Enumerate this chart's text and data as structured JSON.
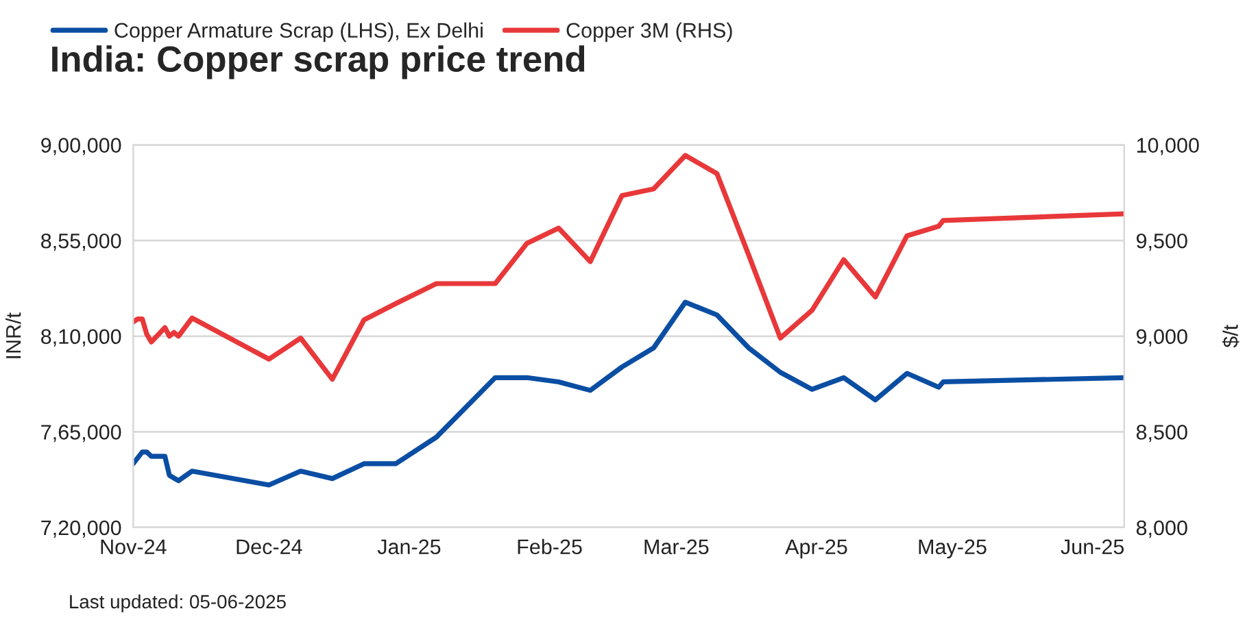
{
  "chart_data": {
    "type": "line",
    "title": "India: Copper scrap price trend",
    "ylabel": "INR/t",
    "y2label": "$/t",
    "annotations": [
      "Last updated: 05-06-2025"
    ],
    "xlim": [
      "2024-11-01",
      "2025-06-08"
    ],
    "xticks": [
      {
        "value": "2024-11-01",
        "label": "Nov-24"
      },
      {
        "value": "2024-12-01",
        "label": "Dec-24"
      },
      {
        "value": "2025-01-01",
        "label": "Jan-25"
      },
      {
        "value": "2025-02-01",
        "label": "Feb-25"
      },
      {
        "value": "2025-03-01",
        "label": "Mar-25"
      },
      {
        "value": "2025-04-01",
        "label": "Apr-25"
      },
      {
        "value": "2025-05-01",
        "label": "May-25"
      },
      {
        "value": "2025-06-01",
        "label": "Jun-25"
      }
    ],
    "ylim": [
      720000,
      900000
    ],
    "yticks": [
      {
        "value": 720000,
        "label": "7,20,000"
      },
      {
        "value": 765000,
        "label": "7,65,000"
      },
      {
        "value": 810000,
        "label": "8,10,000"
      },
      {
        "value": 855000,
        "label": "8,55,000"
      },
      {
        "value": 900000,
        "label": "9,00,000"
      }
    ],
    "y2lim": [
      8000,
      10000
    ],
    "y2ticks": [
      {
        "value": 8000,
        "label": "8,000"
      },
      {
        "value": 8500,
        "label": "8,500"
      },
      {
        "value": 9000,
        "label": "9,000"
      },
      {
        "value": 9500,
        "label": "9,500"
      },
      {
        "value": 10000,
        "label": "10,000"
      }
    ],
    "grid": "y",
    "legend": "top left",
    "marker": "none",
    "line_style": "solid",
    "series": [
      {
        "name": "Copper Armature Scrap (LHS), Ex Delhi",
        "color": "#0a4ea3",
        "x": [
          "2024-11-01",
          "2024-11-03",
          "2024-11-04",
          "2024-11-05",
          "2024-11-08",
          "2024-11-09",
          "2024-11-11",
          "2024-11-14",
          "2024-12-01",
          "2024-12-08",
          "2024-12-15",
          "2024-12-22",
          "2024-12-29",
          "2025-01-07",
          "2025-01-20",
          "2025-01-27",
          "2025-02-03",
          "2025-02-10",
          "2025-02-17",
          "2025-02-24",
          "2025-03-03",
          "2025-03-10",
          "2025-03-17",
          "2025-03-24",
          "2025-03-31",
          "2025-04-07",
          "2025-04-14",
          "2025-04-21",
          "2025-04-28",
          "2025-04-29",
          "2025-06-08"
        ],
        "values": [
          750000,
          755500,
          755500,
          753500,
          753500,
          744500,
          742000,
          746500,
          740000,
          746500,
          743000,
          750000,
          750000,
          762500,
          790500,
          790500,
          788500,
          784500,
          795500,
          804500,
          826000,
          820000,
          804500,
          793000,
          785000,
          790500,
          780000,
          792500,
          786000,
          788500,
          790500
        ]
      },
      {
        "name": "Copper 3M (RHS)",
        "color": "#e8383a",
        "axis": "y2",
        "x": [
          "2024-11-01",
          "2024-11-02",
          "2024-11-03",
          "2024-11-04",
          "2024-11-05",
          "2024-11-08",
          "2024-11-09",
          "2024-11-10",
          "2024-11-11",
          "2024-11-14",
          "2024-12-01",
          "2024-12-08",
          "2024-12-15",
          "2024-12-22",
          "2024-12-29",
          "2025-01-07",
          "2025-01-20",
          "2025-01-27",
          "2025-02-03",
          "2025-02-10",
          "2025-02-17",
          "2025-02-24",
          "2025-03-03",
          "2025-03-10",
          "2025-03-17",
          "2025-03-24",
          "2025-03-31",
          "2025-04-07",
          "2025-04-14",
          "2025-04-21",
          "2025-04-28",
          "2025-04-29",
          "2025-06-08"
        ],
        "values": [
          9075,
          9090,
          9090,
          9010,
          8970,
          9045,
          9000,
          9020,
          9000,
          9095,
          8880,
          8990,
          8775,
          9085,
          9170,
          9275,
          9275,
          9485,
          9565,
          9390,
          9735,
          9770,
          9945,
          9850,
          9425,
          8990,
          9135,
          9400,
          9205,
          9525,
          9575,
          9605,
          9640
        ]
      }
    ]
  }
}
